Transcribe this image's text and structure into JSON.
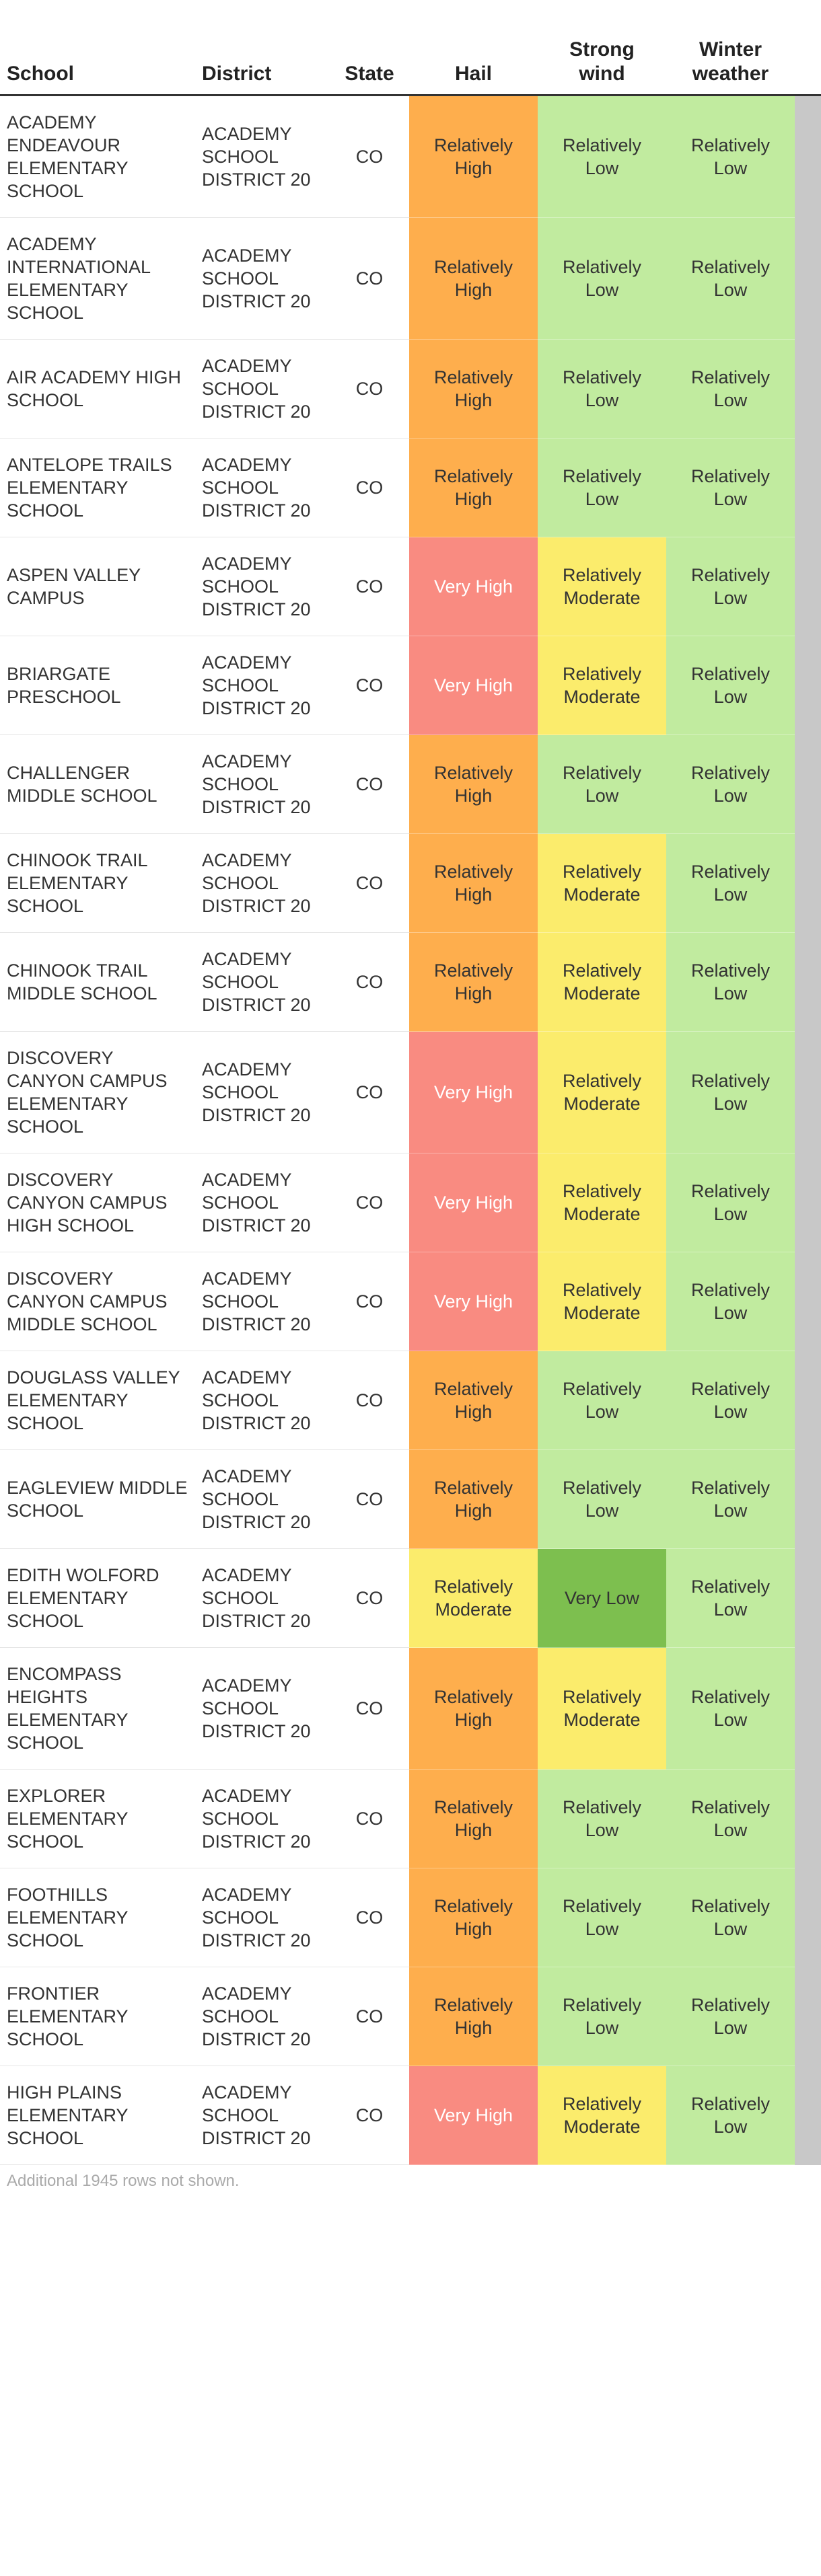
{
  "table": {
    "columns": [
      "School",
      "District",
      "State",
      "Hail",
      "Strong wind",
      "Winter weather"
    ],
    "rating_colors": {
      "Very High": {
        "bg": "#f98b81",
        "fg": "#ffffff"
      },
      "Relatively High": {
        "bg": "#feae4d",
        "fg": "#333333"
      },
      "Relatively Moderate": {
        "bg": "#fbec6c",
        "fg": "#333333"
      },
      "Relatively Low": {
        "bg": "#c1eb9f",
        "fg": "#333333"
      },
      "Very Low": {
        "bg": "#7dbf4f",
        "fg": "#333333"
      }
    },
    "rows": [
      [
        "ACADEMY ENDEAVOUR ELEMENTARY SCHOOL",
        "ACADEMY SCHOOL DISTRICT 20",
        "CO",
        "Relatively High",
        "Relatively Low",
        "Relatively Low"
      ],
      [
        "ACADEMY INTERNATIONAL ELEMENTARY SCHOOL",
        "ACADEMY SCHOOL DISTRICT 20",
        "CO",
        "Relatively High",
        "Relatively Low",
        "Relatively Low"
      ],
      [
        "AIR ACADEMY HIGH SCHOOL",
        "ACADEMY SCHOOL DISTRICT 20",
        "CO",
        "Relatively High",
        "Relatively Low",
        "Relatively Low"
      ],
      [
        "ANTELOPE TRAILS ELEMENTARY SCHOOL",
        "ACADEMY SCHOOL DISTRICT 20",
        "CO",
        "Relatively High",
        "Relatively Low",
        "Relatively Low"
      ],
      [
        "ASPEN VALLEY CAMPUS",
        "ACADEMY SCHOOL DISTRICT 20",
        "CO",
        "Very High",
        "Relatively Moderate",
        "Relatively Low"
      ],
      [
        "BRIARGATE PRESCHOOL",
        "ACADEMY SCHOOL DISTRICT 20",
        "CO",
        "Very High",
        "Relatively Moderate",
        "Relatively Low"
      ],
      [
        "CHALLENGER MIDDLE SCHOOL",
        "ACADEMY SCHOOL DISTRICT 20",
        "CO",
        "Relatively High",
        "Relatively Low",
        "Relatively Low"
      ],
      [
        "CHINOOK TRAIL ELEMENTARY SCHOOL",
        "ACADEMY SCHOOL DISTRICT 20",
        "CO",
        "Relatively High",
        "Relatively Moderate",
        "Relatively Low"
      ],
      [
        "CHINOOK TRAIL MIDDLE SCHOOL",
        "ACADEMY SCHOOL DISTRICT 20",
        "CO",
        "Relatively High",
        "Relatively Moderate",
        "Relatively Low"
      ],
      [
        "DISCOVERY CANYON CAMPUS ELEMENTARY SCHOOL",
        "ACADEMY SCHOOL DISTRICT 20",
        "CO",
        "Very High",
        "Relatively Moderate",
        "Relatively Low"
      ],
      [
        "DISCOVERY CANYON CAMPUS HIGH SCHOOL",
        "ACADEMY SCHOOL DISTRICT 20",
        "CO",
        "Very High",
        "Relatively Moderate",
        "Relatively Low"
      ],
      [
        "DISCOVERY CANYON CAMPUS MIDDLE SCHOOL",
        "ACADEMY SCHOOL DISTRICT 20",
        "CO",
        "Very High",
        "Relatively Moderate",
        "Relatively Low"
      ],
      [
        "DOUGLASS VALLEY ELEMENTARY SCHOOL",
        "ACADEMY SCHOOL DISTRICT 20",
        "CO",
        "Relatively High",
        "Relatively Low",
        "Relatively Low"
      ],
      [
        "EAGLEVIEW MIDDLE SCHOOL",
        "ACADEMY SCHOOL DISTRICT 20",
        "CO",
        "Relatively High",
        "Relatively Low",
        "Relatively Low"
      ],
      [
        "EDITH WOLFORD ELEMENTARY SCHOOL",
        "ACADEMY SCHOOL DISTRICT 20",
        "CO",
        "Relatively Moderate",
        "Very Low",
        "Relatively Low"
      ],
      [
        "ENCOMPASS HEIGHTS ELEMENTARY SCHOOL",
        "ACADEMY SCHOOL DISTRICT 20",
        "CO",
        "Relatively High",
        "Relatively Moderate",
        "Relatively Low"
      ],
      [
        "EXPLORER ELEMENTARY SCHOOL",
        "ACADEMY SCHOOL DISTRICT 20",
        "CO",
        "Relatively High",
        "Relatively Low",
        "Relatively Low"
      ],
      [
        "FOOTHILLS ELEMENTARY SCHOOL",
        "ACADEMY SCHOOL DISTRICT 20",
        "CO",
        "Relatively High",
        "Relatively Low",
        "Relatively Low"
      ],
      [
        "FRONTIER ELEMENTARY SCHOOL",
        "ACADEMY SCHOOL DISTRICT 20",
        "CO",
        "Relatively High",
        "Relatively Low",
        "Relatively Low"
      ],
      [
        "HIGH PLAINS ELEMENTARY SCHOOL",
        "ACADEMY SCHOOL DISTRICT 20",
        "CO",
        "Very High",
        "Relatively Moderate",
        "Relatively Low"
      ]
    ],
    "footnote": "Additional 1945 rows not shown."
  }
}
